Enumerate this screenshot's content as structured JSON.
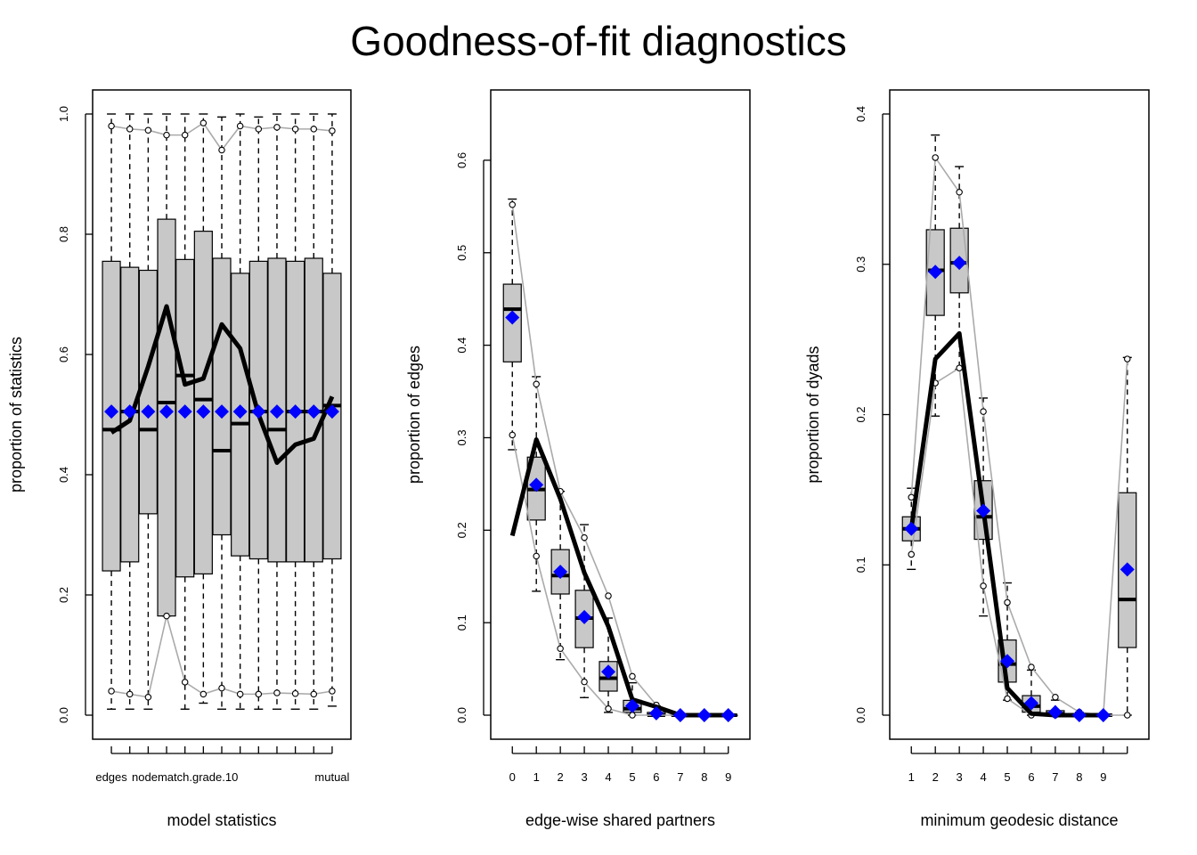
{
  "title": "Goodness-of-fit diagnostics",
  "colors": {
    "box_fill": "#c8c8c8",
    "obs_line": "#000000",
    "mean_marker": "#0000ff",
    "ci_line": "#aaaaaa"
  },
  "chart_data": [
    {
      "type": "boxplot",
      "xlabel": "model statistics",
      "ylabel": "proportion of statistics",
      "ylim": [
        0,
        1.0
      ],
      "yticks": [
        "0.0",
        "0.2",
        "0.4",
        "0.6",
        "0.8",
        "1.0"
      ],
      "ytick_values": [
        0,
        0.2,
        0.4,
        0.6,
        0.8,
        1.0
      ],
      "x_tick_labels": [
        {
          "pos": 1,
          "label": "edges"
        },
        {
          "pos": 5,
          "label": "nodematch.grade.10"
        },
        {
          "pos": 13,
          "label": "mutual"
        }
      ],
      "n": 13,
      "box_lower": [
        0.24,
        0.255,
        0.335,
        0.165,
        0.23,
        0.235,
        0.3,
        0.265,
        0.26,
        0.255,
        0.255,
        0.255,
        0.26
      ],
      "box_upper": [
        0.755,
        0.745,
        0.74,
        0.825,
        0.758,
        0.805,
        0.76,
        0.735,
        0.755,
        0.76,
        0.755,
        0.76,
        0.735
      ],
      "median": [
        0.475,
        0.505,
        0.475,
        0.52,
        0.565,
        0.525,
        0.44,
        0.485,
        0.505,
        0.475,
        0.505,
        0.505,
        0.515
      ],
      "whisker_low": [
        0.01,
        0.01,
        0.01,
        0.165,
        0.01,
        0.02,
        0.01,
        0.01,
        0.01,
        0.01,
        0.01,
        0.01,
        0.015
      ],
      "whisker_high": [
        1.0,
        1.0,
        1.0,
        1.0,
        1.0,
        1.0,
        0.995,
        1.0,
        0.995,
        1.0,
        1.0,
        1.0,
        1.0
      ],
      "observed": [
        0.47,
        0.49,
        0.58,
        0.68,
        0.55,
        0.56,
        0.65,
        0.61,
        0.5,
        0.42,
        0.45,
        0.46,
        0.53
      ],
      "mean": [
        0.505,
        0.505,
        0.505,
        0.505,
        0.505,
        0.505,
        0.505,
        0.505,
        0.505,
        0.505,
        0.505,
        0.505,
        0.505
      ],
      "ci_low": [
        0.04,
        0.035,
        0.03,
        0.165,
        0.055,
        0.035,
        0.045,
        0.035,
        0.035,
        0.037,
        0.036,
        0.035,
        0.04
      ],
      "ci_high": [
        0.98,
        0.975,
        0.973,
        0.965,
        0.965,
        0.985,
        0.94,
        0.98,
        0.975,
        0.978,
        0.975,
        0.975,
        0.972
      ]
    },
    {
      "type": "boxplot",
      "xlabel": "edge-wise shared partners",
      "ylabel": "proportion of edges",
      "ylim": [
        0,
        0.65
      ],
      "yticks": [
        "0.0",
        "0.1",
        "0.2",
        "0.3",
        "0.4",
        "0.5",
        "0.6"
      ],
      "ytick_values": [
        0,
        0.1,
        0.2,
        0.3,
        0.4,
        0.5,
        0.6
      ],
      "x_tick_labels": [
        {
          "pos": 1,
          "label": "0"
        },
        {
          "pos": 2,
          "label": "1"
        },
        {
          "pos": 3,
          "label": "2"
        },
        {
          "pos": 4,
          "label": "3"
        },
        {
          "pos": 5,
          "label": "4"
        },
        {
          "pos": 6,
          "label": "5"
        },
        {
          "pos": 7,
          "label": "6"
        },
        {
          "pos": 8,
          "label": "7"
        },
        {
          "pos": 9,
          "label": "8"
        },
        {
          "pos": 10,
          "label": "9"
        }
      ],
      "n": 10,
      "box_lower": [
        0.382,
        0.211,
        0.131,
        0.073,
        0.026,
        0.003,
        0.0,
        0.0,
        0.0,
        0.0
      ],
      "box_upper": [
        0.466,
        0.279,
        0.179,
        0.135,
        0.058,
        0.016,
        0.003,
        0.0,
        0.0,
        0.0
      ],
      "median": [
        0.439,
        0.244,
        0.151,
        0.105,
        0.04,
        0.007,
        0.0,
        0.0,
        0.0,
        0.0
      ],
      "whisker_low": [
        0.287,
        0.134,
        0.06,
        0.019,
        0.003,
        0.0,
        0.0,
        0.0,
        0.0,
        0.0
      ],
      "whisker_high": [
        0.558,
        0.366,
        0.242,
        0.206,
        0.105,
        0.035,
        0.01,
        0.0,
        0.0,
        0.0
      ],
      "observed": [
        0.194,
        0.298,
        0.234,
        0.154,
        0.096,
        0.017,
        0.009,
        0.0,
        0.0,
        0.0
      ],
      "mean": [
        0.43,
        0.249,
        0.155,
        0.106,
        0.047,
        0.01,
        0.002,
        0.0,
        0.0,
        0.0
      ],
      "ci_low": [
        0.303,
        0.172,
        0.072,
        0.036,
        0.007,
        0.0,
        0.0,
        0.0,
        0.0,
        0.0
      ],
      "ci_high": [
        0.552,
        0.358,
        0.242,
        0.192,
        0.129,
        0.042,
        0.011,
        0.0,
        0.0,
        0.0
      ]
    },
    {
      "type": "boxplot",
      "xlabel": "minimum geodesic distance",
      "ylabel": "proportion of dyads",
      "ylim": [
        0,
        0.4
      ],
      "yticks": [
        "0.0",
        "0.1",
        "0.2",
        "0.3",
        "0.4"
      ],
      "ytick_values": [
        0,
        0.1,
        0.2,
        0.3,
        0.4
      ],
      "x_tick_labels": [
        {
          "pos": 1,
          "label": "1"
        },
        {
          "pos": 2,
          "label": "2"
        },
        {
          "pos": 3,
          "label": "3"
        },
        {
          "pos": 4,
          "label": "4"
        },
        {
          "pos": 5,
          "label": "5"
        },
        {
          "pos": 6,
          "label": "6"
        },
        {
          "pos": 7,
          "label": "7"
        },
        {
          "pos": 8,
          "label": "8"
        },
        {
          "pos": 9,
          "label": "9"
        }
      ],
      "n": 10,
      "box_lower": [
        0.116,
        0.266,
        0.281,
        0.117,
        0.022,
        0.002,
        0.0,
        0.0,
        0.0,
        0.045
      ],
      "box_upper": [
        0.132,
        0.323,
        0.324,
        0.156,
        0.05,
        0.013,
        0.003,
        0.0,
        0.0,
        0.148
      ],
      "median": [
        0.124,
        0.296,
        0.301,
        0.132,
        0.034,
        0.006,
        0.001,
        0.0,
        0.0,
        0.077
      ],
      "whisker_low": [
        0.097,
        0.199,
        0.23,
        0.066,
        0.01,
        0.0,
        0.0,
        0.0,
        0.0,
        0.0
      ],
      "whisker_high": [
        0.151,
        0.386,
        0.365,
        0.211,
        0.088,
        0.03,
        0.01,
        0.002,
        0.0,
        0.238
      ],
      "observed": [
        0.124,
        0.237,
        0.254,
        0.137,
        0.018,
        0.001,
        0.0,
        0.0,
        0.0,
        null
      ],
      "mean": [
        0.124,
        0.295,
        0.301,
        0.136,
        0.036,
        0.008,
        0.002,
        0.0,
        0.0,
        0.097
      ],
      "ci_low": [
        0.107,
        0.221,
        0.231,
        0.086,
        0.011,
        0.0,
        0.0,
        0.0,
        0.0,
        0.0
      ],
      "ci_high": [
        0.145,
        0.371,
        0.348,
        0.202,
        0.075,
        0.032,
        0.012,
        0.002,
        0.0,
        0.237
      ]
    }
  ]
}
